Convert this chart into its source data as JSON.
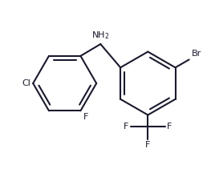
{
  "bg_color": "#ffffff",
  "line_color": "#1a1a2e",
  "line_width": 1.5,
  "font_size_atom": 8.0,
  "figsize": [
    2.68,
    2.16
  ],
  "dpi": 100,
  "xlim": [
    0.0,
    2.68
  ],
  "ylim": [
    0.0,
    2.16
  ]
}
